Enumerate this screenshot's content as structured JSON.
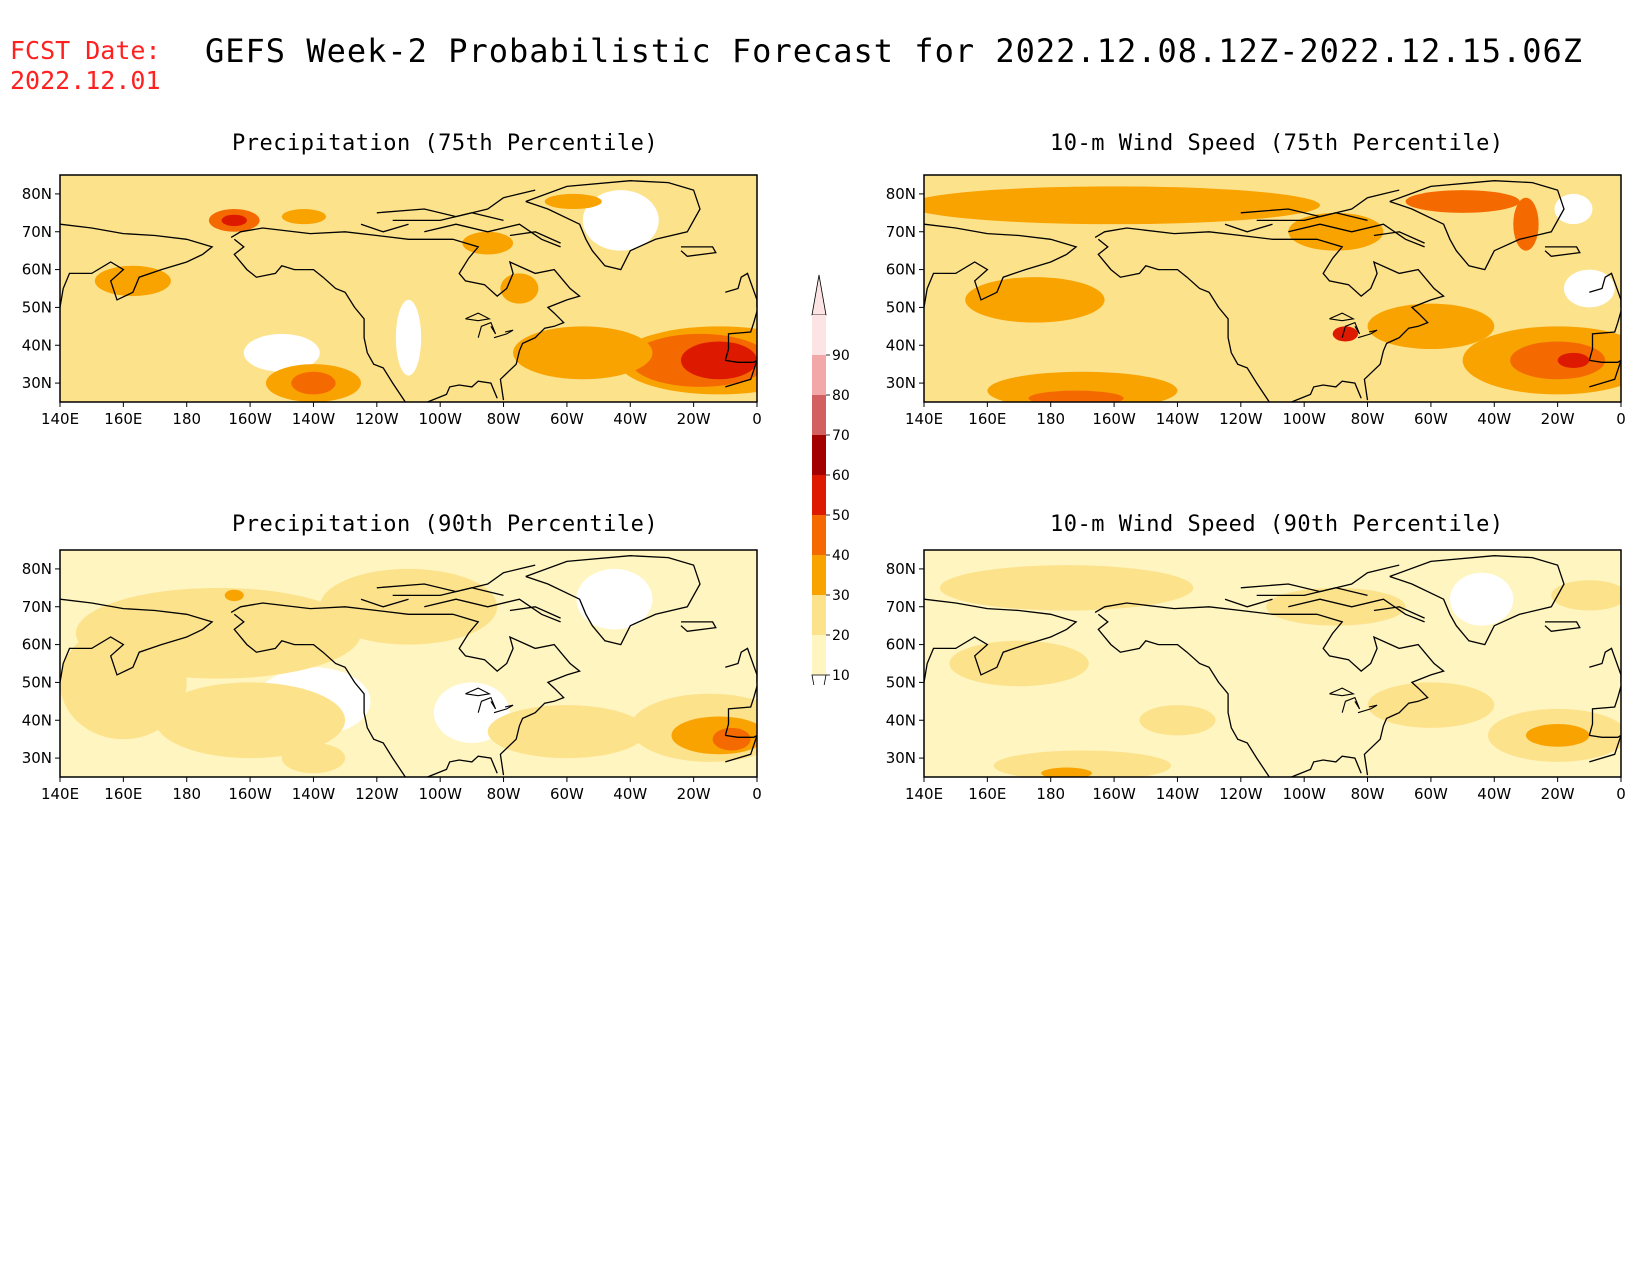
{
  "header": {
    "fcst_label": "FCST Date:",
    "fcst_date": "2022.12.01",
    "title": "GEFS Week-2 Probabilistic Forecast for 2022.12.08.12Z-2022.12.15.06Z"
  },
  "colors": {
    "c10": "#fff5c0",
    "c20": "#fde28c",
    "c30": "#f9a300",
    "c40": "#f46a00",
    "c50": "#dd1a00",
    "c60": "#a30000",
    "c70": "#d26060",
    "c80": "#f2a8a8",
    "c90": "#fde4e4",
    "coast": "#000000"
  },
  "colorbar": {
    "levels": [
      "10",
      "20",
      "30",
      "40",
      "50",
      "60",
      "70",
      "80",
      "90"
    ]
  },
  "lon_labels": [
    "140E",
    "160E",
    "180",
    "160W",
    "140W",
    "120W",
    "100W",
    "80W",
    "60W",
    "40W",
    "20W",
    "0"
  ],
  "lat_labels": [
    "80N",
    "70N",
    "60N",
    "50N",
    "40N",
    "30N"
  ],
  "panels": [
    {
      "id": "precip75",
      "title": "Precipitation (75th Percentile)",
      "base_level": 1,
      "blobs": [
        {
          "lon": -12,
          "lat": 36,
          "rx": 32,
          "ry": 9,
          "level": 2
        },
        {
          "lon": -18,
          "lat": 36,
          "rx": 22,
          "ry": 7,
          "level": 3
        },
        {
          "lon": -12,
          "lat": 36,
          "rx": 12,
          "ry": 5,
          "level": 4
        },
        {
          "lon": -55,
          "lat": 38,
          "rx": 22,
          "ry": 7,
          "level": 2
        },
        {
          "lon": -140,
          "lat": 30,
          "rx": 15,
          "ry": 5,
          "level": 2
        },
        {
          "lon": -140,
          "lat": 30,
          "rx": 7,
          "ry": 3,
          "level": 3
        },
        {
          "lon": -165,
          "lat": 73,
          "rx": 8,
          "ry": 3,
          "level": 3
        },
        {
          "lon": -165,
          "lat": 73,
          "rx": 4,
          "ry": 1.5,
          "level": 4
        },
        {
          "lon": 163,
          "lat": 57,
          "rx": 12,
          "ry": 4,
          "level": 2
        },
        {
          "lon": -143,
          "lat": 74,
          "rx": 7,
          "ry": 2,
          "level": 2
        },
        {
          "lon": -58,
          "lat": 78,
          "rx": 9,
          "ry": 2,
          "level": 2
        },
        {
          "lon": -75,
          "lat": 55,
          "rx": 6,
          "ry": 4,
          "level": 2
        },
        {
          "lon": -85,
          "lat": 67,
          "rx": 8,
          "ry": 3,
          "level": 2
        }
      ],
      "white": [
        {
          "lon": -43,
          "lat": 73,
          "rx": 12,
          "ry": 8
        },
        {
          "lon": -110,
          "lat": 42,
          "rx": 4,
          "ry": 10
        },
        {
          "lon": -150,
          "lat": 38,
          "rx": 12,
          "ry": 5
        }
      ]
    },
    {
      "id": "wind75",
      "title": "10-m Wind Speed (75th Percentile)",
      "base_level": 1,
      "blobs": [
        {
          "lon": -160,
          "lat": 77,
          "rx": 65,
          "ry": 5,
          "level": 2
        },
        {
          "lon": -20,
          "lat": 36,
          "rx": 30,
          "ry": 9,
          "level": 2
        },
        {
          "lon": -20,
          "lat": 36,
          "rx": 15,
          "ry": 5,
          "level": 3
        },
        {
          "lon": -15,
          "lat": 36,
          "rx": 5,
          "ry": 2,
          "level": 4
        },
        {
          "lon": -170,
          "lat": 28,
          "rx": 30,
          "ry": 5,
          "level": 2
        },
        {
          "lon": -172,
          "lat": 26,
          "rx": 15,
          "ry": 2,
          "level": 3
        },
        {
          "lon": 175,
          "lat": 52,
          "rx": 22,
          "ry": 6,
          "level": 2
        },
        {
          "lon": -60,
          "lat": 45,
          "rx": 20,
          "ry": 6,
          "level": 2
        },
        {
          "lon": -50,
          "lat": 78,
          "rx": 18,
          "ry": 3,
          "level": 3
        },
        {
          "lon": -30,
          "lat": 72,
          "rx": 4,
          "ry": 7,
          "level": 3
        },
        {
          "lon": -90,
          "lat": 70,
          "rx": 15,
          "ry": 5,
          "level": 2
        },
        {
          "lon": -87,
          "lat": 43,
          "rx": 4,
          "ry": 2,
          "level": 4
        }
      ],
      "white": [
        {
          "lon": -10,
          "lat": 55,
          "rx": 8,
          "ry": 5
        },
        {
          "lon": -15,
          "lat": 76,
          "rx": 6,
          "ry": 4
        }
      ]
    },
    {
      "id": "precip90",
      "title": "Precipitation (90th Percentile)",
      "base_level": 0,
      "blobs": [
        {
          "lon": -170,
          "lat": 63,
          "rx": 45,
          "ry": 12,
          "level": 1
        },
        {
          "lon": -110,
          "lat": 70,
          "rx": 28,
          "ry": 10,
          "level": 1
        },
        {
          "lon": -15,
          "lat": 38,
          "rx": 25,
          "ry": 9,
          "level": 1
        },
        {
          "lon": -12,
          "lat": 36,
          "rx": 15,
          "ry": 5,
          "level": 2
        },
        {
          "lon": -8,
          "lat": 35,
          "rx": 6,
          "ry": 3,
          "level": 3
        },
        {
          "lon": -160,
          "lat": 40,
          "rx": 30,
          "ry": 10,
          "level": 1
        },
        {
          "lon": -140,
          "lat": 30,
          "rx": 10,
          "ry": 4,
          "level": 1
        },
        {
          "lon": -60,
          "lat": 37,
          "rx": 25,
          "ry": 7,
          "level": 1
        },
        {
          "lon": -165,
          "lat": 73,
          "rx": 3,
          "ry": 1.5,
          "level": 2
        },
        {
          "lon": 160,
          "lat": 50,
          "rx": 20,
          "ry": 15,
          "level": 1
        }
      ],
      "white": [
        {
          "lon": -140,
          "lat": 45,
          "rx": 18,
          "ry": 9
        },
        {
          "lon": -90,
          "lat": 42,
          "rx": 12,
          "ry": 8
        },
        {
          "lon": -45,
          "lat": 72,
          "rx": 12,
          "ry": 8
        }
      ]
    },
    {
      "id": "wind90",
      "title": "10-m Wind Speed (90th Percentile)",
      "base_level": 0,
      "blobs": [
        {
          "lon": -175,
          "lat": 75,
          "rx": 40,
          "ry": 6,
          "level": 1
        },
        {
          "lon": -10,
          "lat": 73,
          "rx": 12,
          "ry": 4,
          "level": 1
        },
        {
          "lon": 170,
          "lat": 55,
          "rx": 22,
          "ry": 6,
          "level": 1
        },
        {
          "lon": -20,
          "lat": 36,
          "rx": 22,
          "ry": 7,
          "level": 1
        },
        {
          "lon": -20,
          "lat": 36,
          "rx": 10,
          "ry": 3,
          "level": 2
        },
        {
          "lon": -170,
          "lat": 28,
          "rx": 28,
          "ry": 4,
          "level": 1
        },
        {
          "lon": -90,
          "lat": 70,
          "rx": 22,
          "ry": 5,
          "level": 1
        },
        {
          "lon": -60,
          "lat": 44,
          "rx": 20,
          "ry": 6,
          "level": 1
        },
        {
          "lon": -140,
          "lat": 40,
          "rx": 12,
          "ry": 4,
          "level": 1
        },
        {
          "lon": -175,
          "lat": 26,
          "rx": 8,
          "ry": 1.5,
          "level": 2
        }
      ],
      "white": [
        {
          "lon": -44,
          "lat": 72,
          "rx": 10,
          "ry": 7
        }
      ]
    }
  ]
}
